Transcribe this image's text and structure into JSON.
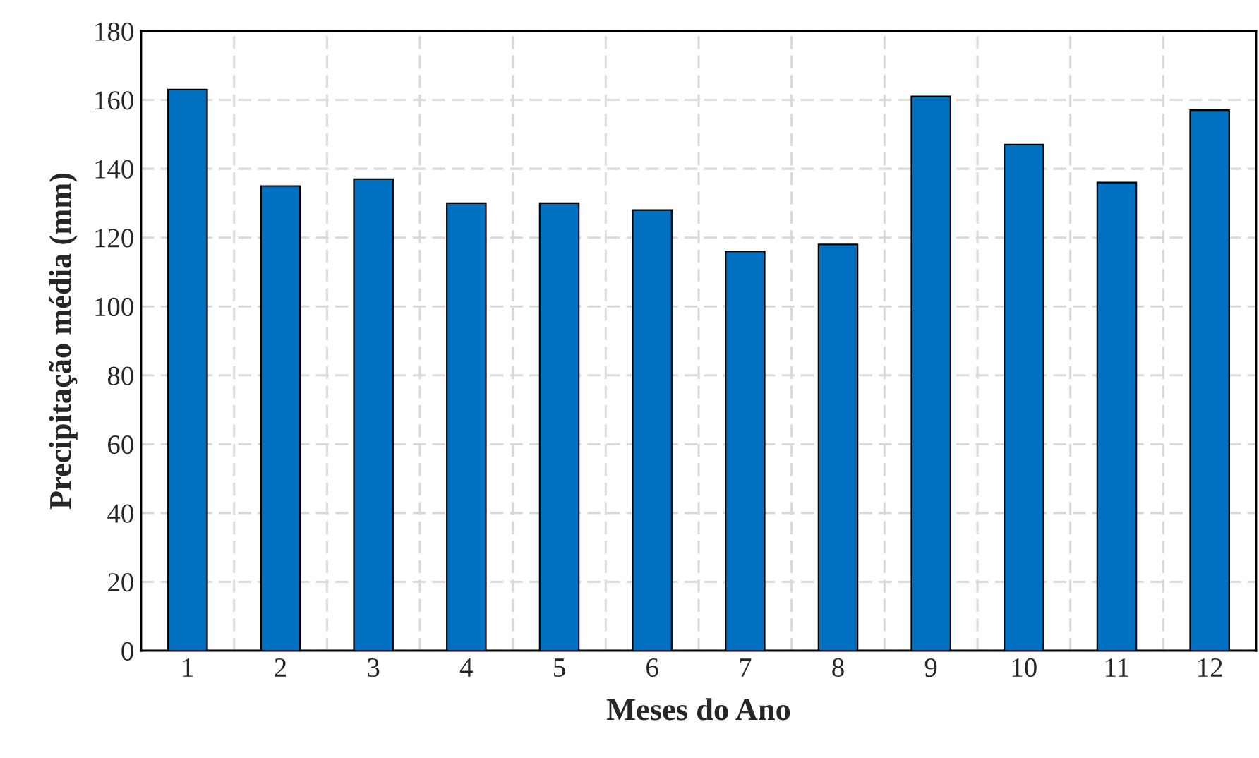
{
  "chart_data": {
    "type": "bar",
    "xlabel": "Meses do Ano",
    "ylabel": "Precipitação média (mm)",
    "categories": [
      "1",
      "2",
      "3",
      "4",
      "5",
      "6",
      "7",
      "8",
      "9",
      "10",
      "11",
      "12"
    ],
    "values": [
      163,
      135,
      137,
      130,
      130,
      128,
      116,
      118,
      161,
      147,
      136,
      157
    ],
    "color": "#0070c0",
    "ylim": [
      0,
      180
    ],
    "yticks": [
      0,
      20,
      40,
      60,
      80,
      100,
      120,
      140,
      160,
      180
    ],
    "grid": true
  }
}
